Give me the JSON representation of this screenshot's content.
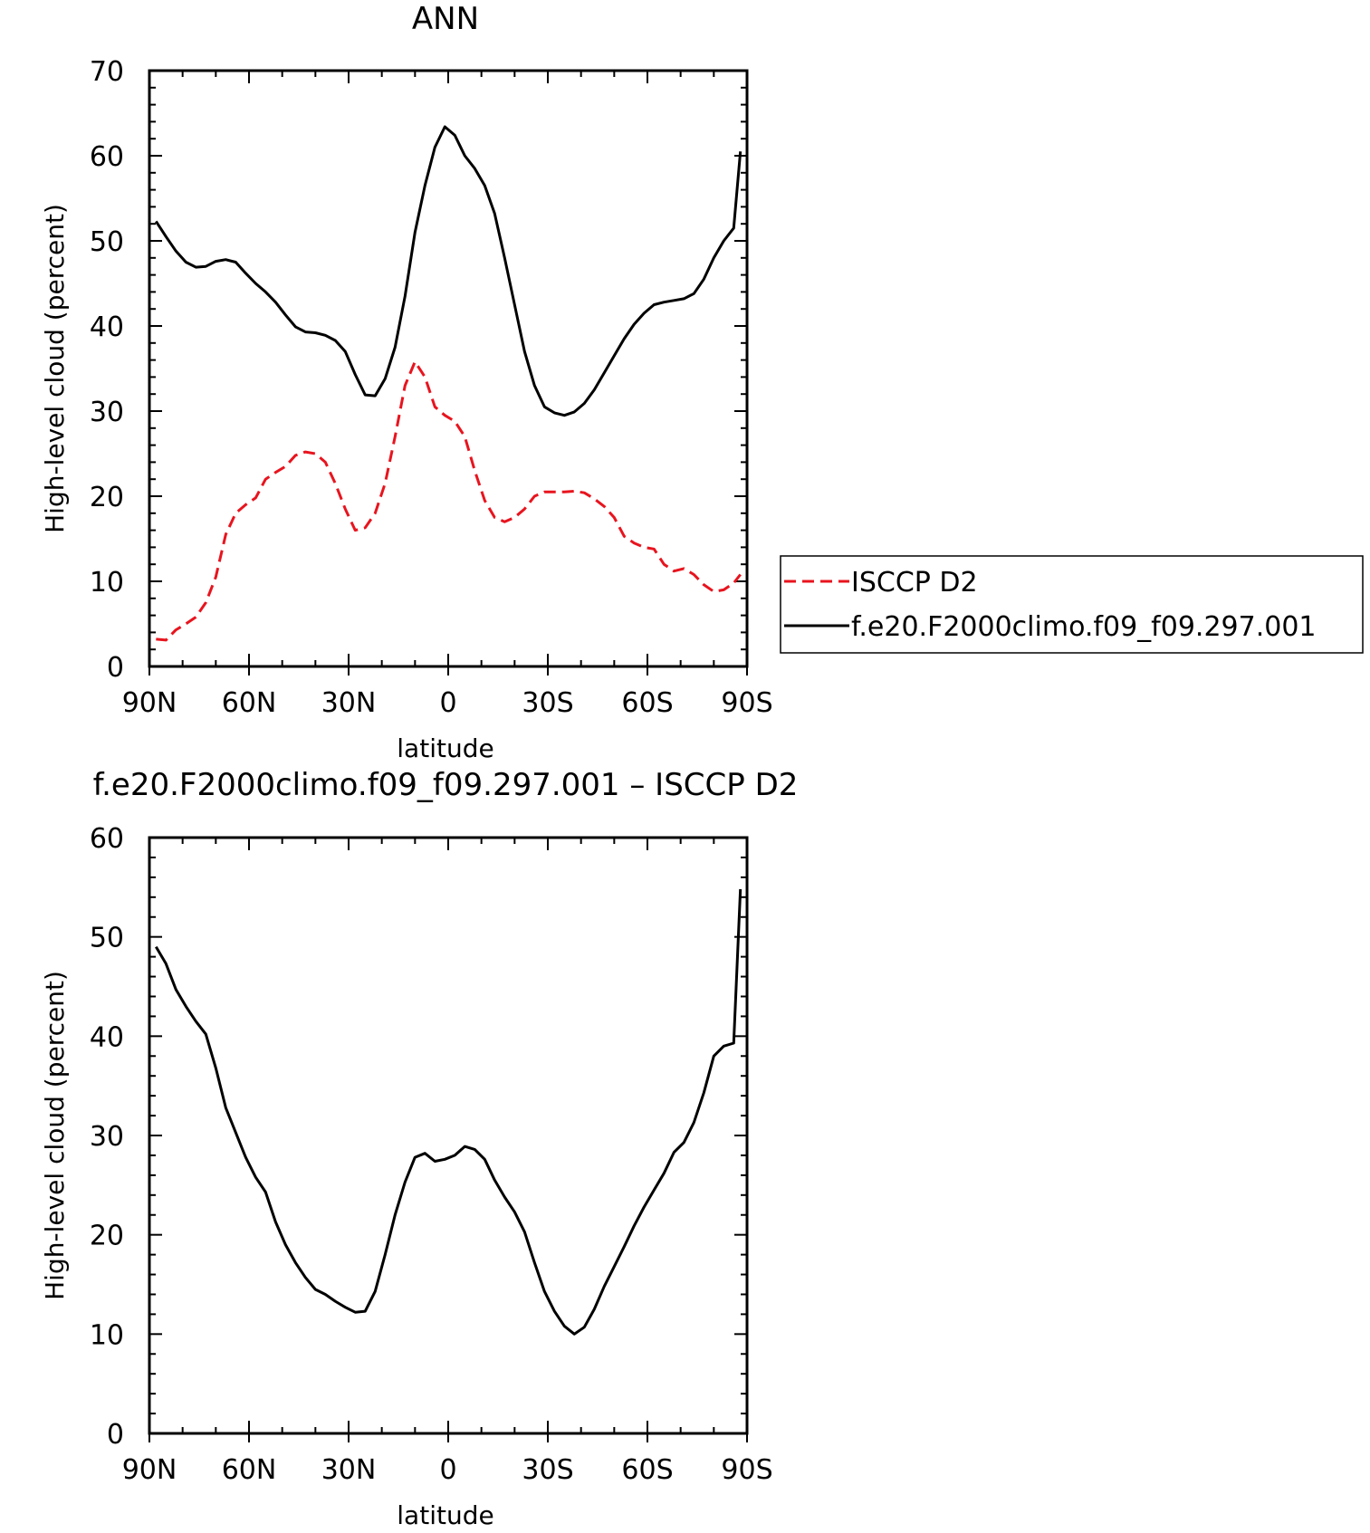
{
  "chart_data": [
    {
      "type": "line",
      "title": "ANN",
      "xlabel": "latitude",
      "ylabel": "High-level cloud (percent)",
      "x_ticks": [
        "90N",
        "60N",
        "30N",
        "0",
        "30S",
        "60S",
        "90S"
      ],
      "x_tick_values": [
        90,
        60,
        30,
        0,
        -30,
        -60,
        -90
      ],
      "xlim": [
        90,
        -90
      ],
      "ylim": [
        0,
        70
      ],
      "y_ticks": [
        0,
        10,
        20,
        30,
        40,
        50,
        60,
        70
      ],
      "legend_position": "right",
      "series": [
        {
          "name": "ISCCP D2",
          "color": "#e8141e",
          "dash": "dashed",
          "x": [
            88,
            85,
            82,
            79,
            76,
            73,
            70,
            67,
            64,
            61,
            58,
            55,
            52,
            49,
            46,
            43,
            40,
            37,
            34,
            31,
            28,
            25,
            22,
            19,
            16,
            13,
            10,
            7,
            4,
            1,
            -2,
            -5,
            -8,
            -11,
            -14,
            -17,
            -20,
            -23,
            -26,
            -29,
            -32,
            -35,
            -38,
            -41,
            -44,
            -47,
            -50,
            -53,
            -56,
            -59,
            -62,
            -65,
            -68,
            -71,
            -74,
            -77,
            -80,
            -83,
            -86,
            -88
          ],
          "y": [
            3.2,
            3.1,
            4.3,
            5.0,
            5.8,
            7.5,
            10.5,
            15.5,
            18.0,
            19.0,
            19.8,
            22.0,
            22.8,
            23.5,
            24.8,
            25.2,
            25.0,
            24.0,
            21.5,
            18.5,
            16.0,
            16.3,
            18.0,
            21.5,
            27.0,
            33.0,
            35.8,
            34.0,
            30.5,
            29.5,
            28.8,
            27.0,
            23.0,
            19.5,
            17.5,
            17.0,
            17.5,
            18.5,
            20.0,
            20.5,
            20.5,
            20.5,
            20.6,
            20.4,
            19.7,
            18.8,
            17.5,
            15.3,
            14.5,
            14.0,
            13.8,
            12.0,
            11.2,
            11.5,
            10.8,
            9.6,
            8.8,
            9.0,
            9.8,
            10.8
          ]
        },
        {
          "name": "f.e20.F2000climo.f09_f09.297.001",
          "color": "#000000",
          "dash": "solid",
          "x": [
            88,
            85,
            82,
            79,
            76,
            73,
            70,
            67,
            64,
            61,
            58,
            55,
            52,
            49,
            46,
            43,
            40,
            37,
            34,
            31,
            28,
            25,
            22,
            19,
            16,
            13,
            10,
            7,
            4,
            1,
            -2,
            -5,
            -8,
            -11,
            -14,
            -17,
            -20,
            -23,
            -26,
            -29,
            -32,
            -35,
            -38,
            -41,
            -44,
            -47,
            -50,
            -53,
            -56,
            -59,
            -62,
            -65,
            -68,
            -71,
            -74,
            -77,
            -80,
            -83,
            -86,
            -88
          ],
          "y": [
            52.3,
            50.5,
            48.8,
            47.5,
            46.9,
            47.0,
            47.6,
            47.8,
            47.5,
            46.2,
            45.0,
            44.0,
            42.8,
            41.3,
            39.9,
            39.3,
            39.2,
            38.9,
            38.3,
            37.0,
            34.3,
            31.9,
            31.8,
            33.8,
            37.5,
            43.5,
            51.0,
            56.5,
            61.0,
            63.4,
            62.4,
            60.0,
            58.5,
            56.5,
            53.2,
            48.0,
            42.5,
            37.0,
            33.0,
            30.5,
            29.8,
            29.5,
            29.9,
            30.9,
            32.5,
            34.5,
            36.5,
            38.5,
            40.2,
            41.5,
            42.5,
            42.8,
            43.0,
            43.2,
            43.8,
            45.5,
            48.0,
            50.0,
            51.5,
            60.5
          ]
        }
      ]
    },
    {
      "type": "line",
      "title": "f.e20.F2000climo.f09_f09.297.001 – ISCCP D2",
      "xlabel": "latitude",
      "ylabel": "High-level cloud (percent)",
      "x_ticks": [
        "90N",
        "60N",
        "30N",
        "0",
        "30S",
        "60S",
        "90S"
      ],
      "x_tick_values": [
        90,
        60,
        30,
        0,
        -30,
        -60,
        -90
      ],
      "xlim": [
        90,
        -90
      ],
      "ylim": [
        0,
        60
      ],
      "y_ticks": [
        0,
        10,
        20,
        30,
        40,
        50,
        60
      ],
      "series": [
        {
          "color": "#000000",
          "dash": "solid",
          "x": [
            88,
            85,
            82,
            79,
            76,
            73,
            70,
            67,
            64,
            61,
            58,
            55,
            52,
            49,
            46,
            43,
            40,
            37,
            34,
            31,
            28,
            25,
            22,
            19,
            16,
            13,
            10,
            7,
            4,
            1,
            -2,
            -5,
            -8,
            -11,
            -14,
            -17,
            -20,
            -23,
            -26,
            -29,
            -32,
            -35,
            -38,
            -41,
            -44,
            -47,
            -50,
            -53,
            -56,
            -59,
            -62,
            -65,
            -68,
            -71,
            -74,
            -77,
            -80,
            -83,
            -86,
            -88
          ],
          "y": [
            49.0,
            47.3,
            44.7,
            43.0,
            41.5,
            40.2,
            36.8,
            32.8,
            30.3,
            27.8,
            25.8,
            24.3,
            21.3,
            19.0,
            17.2,
            15.7,
            14.5,
            14.0,
            13.3,
            12.7,
            12.2,
            12.3,
            14.3,
            18.0,
            22.0,
            25.3,
            27.8,
            28.2,
            27.4,
            27.6,
            28.0,
            28.9,
            28.6,
            27.6,
            25.5,
            23.8,
            22.3,
            20.3,
            17.2,
            14.3,
            12.3,
            10.8,
            10.0,
            10.7,
            12.5,
            14.8,
            16.8,
            18.8,
            20.9,
            22.8,
            24.5,
            26.2,
            28.3,
            29.3,
            31.3,
            34.3,
            38.0,
            39.0,
            39.3,
            54.8
          ]
        }
      ]
    }
  ]
}
